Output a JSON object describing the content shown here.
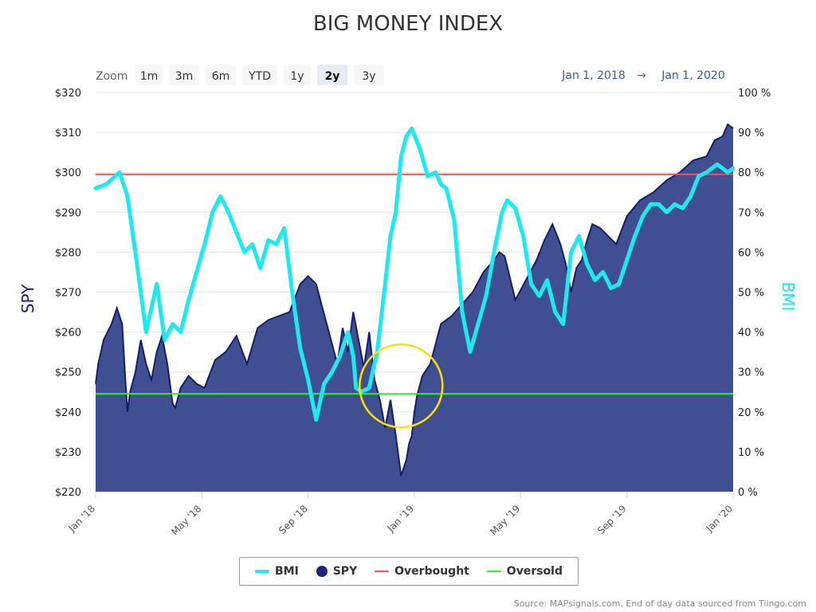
{
  "chart_data": {
    "type": "area+line",
    "title": "BIG MONEY INDEX",
    "zoom": {
      "label": "Zoom",
      "buttons": [
        "1m",
        "3m",
        "6m",
        "YTD",
        "1y",
        "2y",
        "3y"
      ],
      "selected": "2y"
    },
    "range": {
      "from": "Jan 1, 2018",
      "arrow": "→",
      "to": "Jan 1, 2020"
    },
    "x_ticks": [
      "Jan '18",
      "May '18",
      "Sep '18",
      "Jan '19",
      "May '19",
      "Sep '19",
      "Jan '20"
    ],
    "y_left": {
      "label": "SPY",
      "min": 220,
      "max": 320,
      "ticks": [
        "$220",
        "$230",
        "$240",
        "$250",
        "$260",
        "$270",
        "$280",
        "$290",
        "$300",
        "$310",
        "$320"
      ]
    },
    "y_right": {
      "label": "BMI",
      "min": 0,
      "max": 100,
      "ticks": [
        "0 %",
        "10 %",
        "20 %",
        "30 %",
        "40 %",
        "50 %",
        "60 %",
        "70 %",
        "80 %",
        "90 %",
        "100 %"
      ]
    },
    "thresholds": {
      "overbought": 79.5,
      "oversold": 24.5
    },
    "x_range_months": [
      0,
      24
    ],
    "series": [
      {
        "name": "SPY",
        "kind": "area",
        "axis": "left",
        "color": "#1a237e",
        "fill": "#3f4f92",
        "x": [
          0,
          0.1,
          0.3,
          0.6,
          0.8,
          1.0,
          1.1,
          1.2,
          1.3,
          1.5,
          1.7,
          1.9,
          2.1,
          2.3,
          2.5,
          2.7,
          2.9,
          3.0,
          3.2,
          3.5,
          3.8,
          4.1,
          4.5,
          4.9,
          5.3,
          5.7,
          6.1,
          6.5,
          6.9,
          7.3,
          7.7,
          8.0,
          8.3,
          8.7,
          8.9,
          9.1,
          9.3,
          9.5,
          9.7,
          9.9,
          10.1,
          10.3,
          10.5,
          10.7,
          10.9,
          11.1,
          11.3,
          11.5,
          11.7,
          11.8,
          11.9,
          12.0,
          12.1,
          12.3,
          12.6,
          13.0,
          13.4,
          13.8,
          14.2,
          14.6,
          15.0,
          15.2,
          15.4,
          15.8,
          16.2,
          16.6,
          16.9,
          17.2,
          17.5,
          17.7,
          17.9,
          18.1,
          18.3,
          18.5,
          18.7,
          19.0,
          19.3,
          19.6,
          20.0,
          20.5,
          21.0,
          21.5,
          22.0,
          22.5,
          23.0,
          23.3,
          23.6,
          23.8,
          24.0
        ],
        "values": [
          247,
          252,
          258,
          262,
          266,
          262,
          250,
          240,
          245,
          250,
          258,
          252,
          248,
          255,
          259,
          252,
          242,
          241,
          246,
          249,
          247,
          246,
          253,
          255,
          259,
          252,
          261,
          263,
          264,
          265,
          272,
          274,
          272,
          262,
          257,
          252,
          261,
          255,
          265,
          258,
          251,
          260,
          248,
          243,
          236,
          243,
          234,
          224,
          228,
          232,
          234,
          240,
          244,
          249,
          252,
          262,
          264,
          267,
          270,
          275,
          278,
          280,
          279,
          268,
          273,
          278,
          283,
          287,
          282,
          277,
          270,
          276,
          278,
          283,
          287,
          286,
          284,
          282,
          289,
          293,
          295,
          298,
          300,
          303,
          304,
          308,
          309,
          312,
          311
        ]
      },
      {
        "name": "BMI",
        "kind": "line",
        "axis": "right",
        "color": "#1de9f0",
        "x": [
          0,
          0.4,
          0.9,
          1.2,
          1.6,
          1.9,
          2.3,
          2.6,
          2.9,
          3.2,
          3.5,
          3.8,
          4.1,
          4.4,
          4.7,
          5.0,
          5.3,
          5.6,
          5.9,
          6.2,
          6.5,
          6.8,
          7.1,
          7.4,
          7.7,
          8.0,
          8.3,
          8.6,
          8.9,
          9.2,
          9.5,
          9.7,
          9.8,
          10.0,
          10.3,
          10.6,
          10.9,
          11.1,
          11.3,
          11.5,
          11.7,
          11.9,
          12.2,
          12.5,
          12.8,
          13.0,
          13.2,
          13.5,
          13.8,
          14.1,
          14.4,
          14.7,
          15.0,
          15.3,
          15.5,
          15.8,
          16.1,
          16.4,
          16.7,
          17.0,
          17.3,
          17.6,
          17.9,
          18.2,
          18.5,
          18.8,
          19.1,
          19.4,
          19.7,
          20.0,
          20.3,
          20.6,
          20.9,
          21.2,
          21.5,
          21.8,
          22.1,
          22.4,
          22.7,
          23.0,
          23.2,
          23.4,
          23.6,
          23.8,
          24.0
        ],
        "values": [
          76,
          77,
          80,
          74,
          55,
          40,
          52,
          38,
          42,
          40,
          48,
          55,
          62,
          70,
          74,
          70,
          65,
          60,
          62,
          56,
          63,
          62,
          66,
          50,
          36,
          28,
          18,
          27,
          30,
          34,
          40,
          34,
          26,
          25,
          26,
          35,
          52,
          64,
          70,
          84,
          89,
          91,
          86,
          79,
          80,
          77,
          76,
          68,
          45,
          35,
          42,
          49,
          60,
          70,
          73,
          71,
          64,
          52,
          49,
          53,
          45,
          42,
          60,
          64,
          57,
          53,
          55,
          51,
          52,
          58,
          64,
          69,
          72,
          72,
          70,
          72,
          71,
          74,
          79,
          80,
          81,
          82,
          81,
          80,
          81
        ]
      }
    ],
    "legend": [
      {
        "name": "BMI",
        "style": "thick-line",
        "color": "#1de9f0"
      },
      {
        "name": "SPY",
        "style": "dot",
        "color": "#1a237e"
      },
      {
        "name": "Overbought",
        "style": "thin-line",
        "color": "#ff4d4d"
      },
      {
        "name": "Oversold",
        "style": "thin-line",
        "color": "#33ee33"
      }
    ],
    "annotation": {
      "shape": "circle",
      "color": "#ffe000",
      "at_month": 11.5,
      "at_bmi": 26.5
    },
    "source": "Source: MAPsignals.com, End of day data sourced from Tiingo.com"
  }
}
